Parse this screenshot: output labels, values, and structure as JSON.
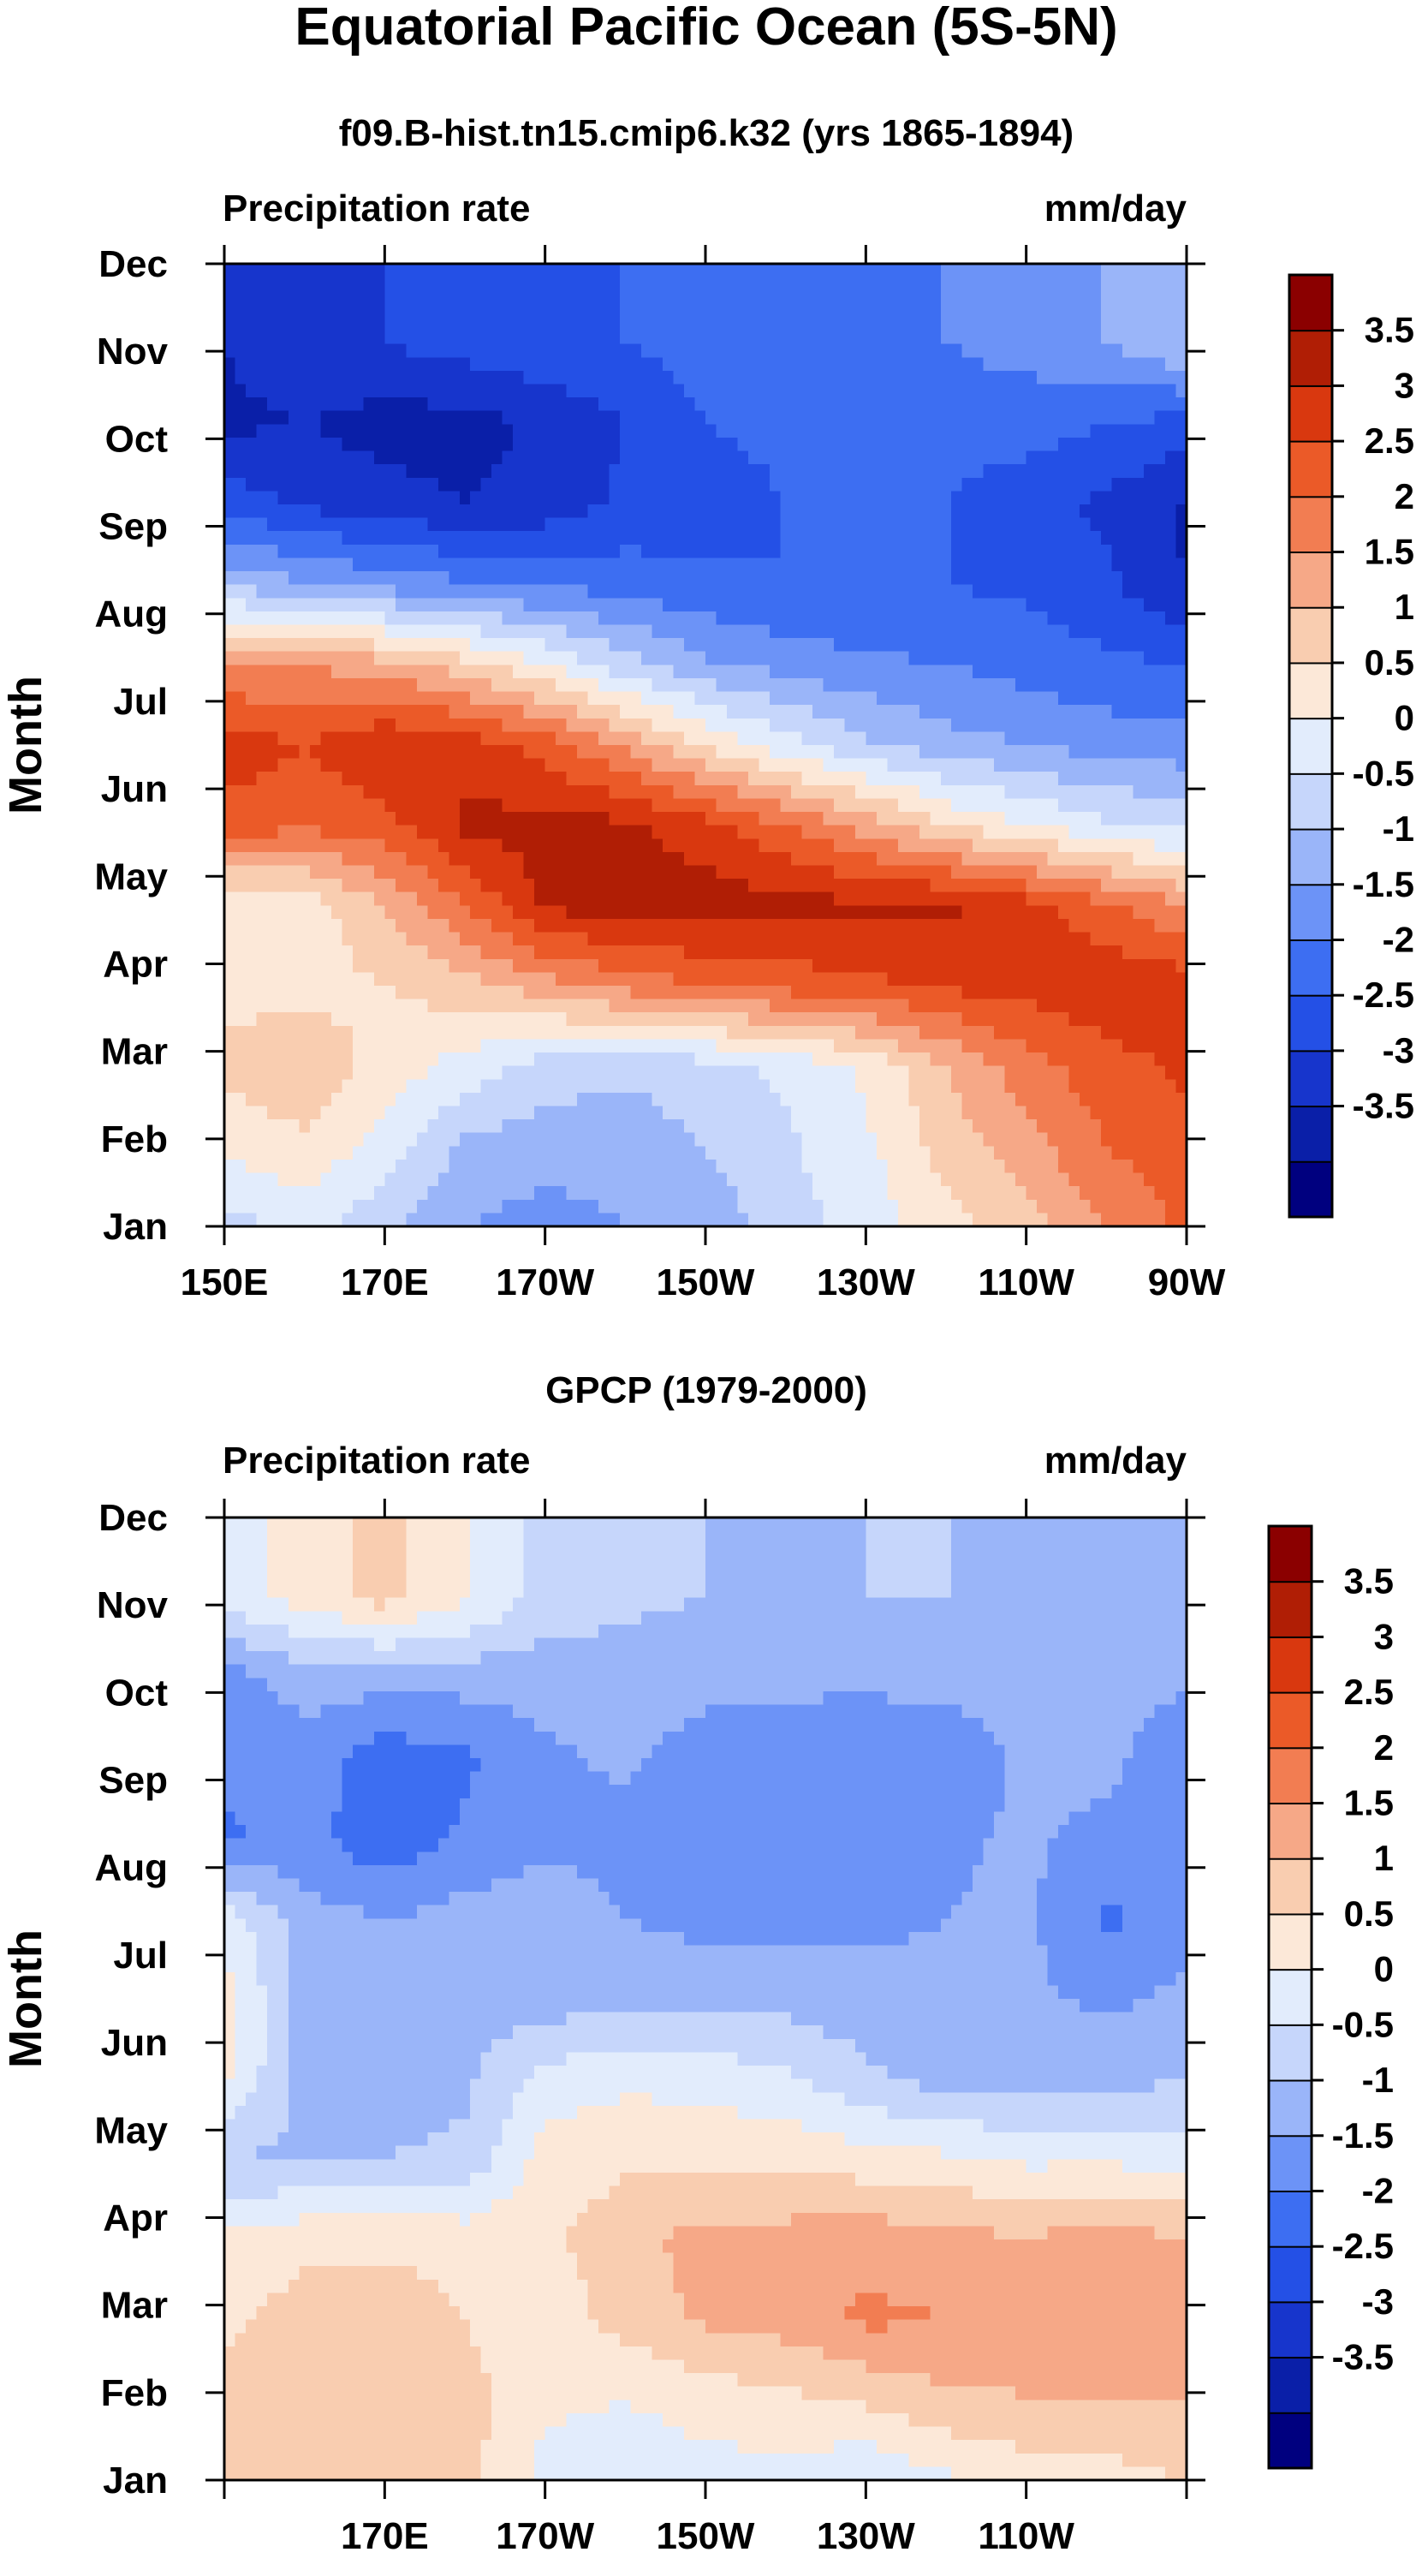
{
  "figure": {
    "title": "Equatorial Pacific Ocean (5S-5N)",
    "legend_ticks": [
      "3.5",
      "3",
      "2.5",
      "2",
      "1.5",
      "1",
      "0.5",
      "0",
      "-0.5",
      "-1",
      "-1.5",
      "-2",
      "-2.5",
      "-3",
      "-3.5"
    ],
    "colors": {
      "palette": [
        "#00007f",
        "#0a1fa8",
        "#1735cc",
        "#2450e6",
        "#3d6ef2",
        "#6c93f7",
        "#9ab5f9",
        "#c6d6fb",
        "#e2ecfc",
        "#fce8d8",
        "#f9cdb0",
        "#f6a887",
        "#f27d52",
        "#eb5a28",
        "#d9380f",
        "#b01e05",
        "#8b0000"
      ]
    }
  },
  "chart_data": [
    {
      "type": "heatmap",
      "subtitle": "f09.B-hist.tn15.cmip6.k32 (yrs 1865-1894)",
      "left_label": "Precipitation rate",
      "right_label": "mm/day",
      "ylabel": "Month",
      "xlabel": "",
      "x_tick_labels": [
        "150E",
        "170E",
        "170W",
        "150W",
        "130W",
        "110W",
        "90W"
      ],
      "y_tick_labels": [
        "Jan",
        "Feb",
        "Mar",
        "Apr",
        "May",
        "Jun",
        "Jul",
        "Aug",
        "Sep",
        "Oct",
        "Nov",
        "Dec"
      ],
      "x_longitude_east": [
        150,
        160,
        170,
        180,
        190,
        200,
        210,
        220,
        230,
        240,
        250,
        260,
        270
      ],
      "months": [
        "Jan",
        "Feb",
        "Mar",
        "Apr",
        "May",
        "Jun",
        "Jul",
        "Aug",
        "Sep",
        "Oct",
        "Nov",
        "Dec",
        "Dec"
      ],
      "contour_levels": [
        -3.5,
        -3,
        -2.5,
        -2,
        -1.5,
        -1,
        -0.5,
        0,
        0.5,
        1,
        1.5,
        2,
        2.5,
        3,
        3.5
      ],
      "values_mm_day": [
        [
          -0.2,
          0.2,
          -0.4,
          -1.0,
          -1.2,
          -1.0,
          -0.8,
          -0.2,
          0.2,
          0.8,
          1.3,
          2.0,
          2.6
        ],
        [
          0.6,
          0.9,
          0.3,
          -0.6,
          -0.8,
          -0.8,
          -0.5,
          -0.1,
          0.4,
          1.2,
          1.8,
          2.5,
          2.8
        ],
        [
          1.2,
          1.4,
          0.8,
          0.3,
          -0.2,
          -0.4,
          -0.2,
          0.1,
          0.6,
          1.5,
          2.3,
          2.8,
          3.1
        ],
        [
          0.8,
          0.8,
          1.0,
          1.3,
          1.8,
          2.2,
          2.5,
          2.7,
          2.9,
          3.1,
          3.2,
          3.4,
          3.3
        ],
        [
          0.5,
          0.7,
          1.5,
          2.5,
          3.6,
          3.8,
          3.8,
          3.7,
          3.6,
          3.6,
          3.2,
          2.6,
          2.0
        ],
        [
          2.8,
          2.6,
          2.8,
          3.6,
          3.7,
          3.6,
          3.2,
          2.5,
          1.8,
          1.0,
          0.5,
          0.1,
          -0.2
        ],
        [
          3.3,
          3.0,
          3.5,
          3.3,
          2.8,
          1.9,
          0.9,
          0.2,
          -0.4,
          -0.8,
          -1.0,
          -1.2,
          -1.3
        ],
        [
          2.0,
          2.0,
          1.7,
          1.2,
          0.5,
          -0.3,
          -0.9,
          -1.2,
          -1.4,
          -1.5,
          -1.7,
          -1.9,
          -2.0
        ],
        [
          -0.6,
          -0.9,
          -1.2,
          -1.4,
          -1.6,
          -1.7,
          -1.9,
          -2.0,
          -2.0,
          -2.0,
          -2.1,
          -2.4,
          -3.0
        ],
        [
          -2.2,
          -2.6,
          -2.8,
          -3.0,
          -2.8,
          -2.4,
          -2.2,
          -2.0,
          -1.9,
          -2.0,
          -2.3,
          -2.6,
          -3.1
        ],
        [
          -3.1,
          -3.0,
          -3.2,
          -3.2,
          -2.9,
          -2.5,
          -2.0,
          -1.9,
          -1.9,
          -1.8,
          -1.8,
          -2.0,
          -2.2
        ],
        [
          -3.0,
          -2.7,
          -2.5,
          -2.3,
          -2.1,
          -2.0,
          -1.8,
          -1.7,
          -1.6,
          -1.5,
          -1.3,
          -1.0,
          -0.5
        ],
        [
          -3.0,
          -2.7,
          -2.5,
          -2.3,
          -2.1,
          -2.0,
          -1.8,
          -1.7,
          -1.6,
          -1.5,
          -1.3,
          -1.0,
          -0.5
        ]
      ]
    },
    {
      "type": "heatmap",
      "subtitle": "GPCP (1979-2000)",
      "left_label": "Precipitation rate",
      "right_label": "mm/day",
      "ylabel": "Month",
      "xlabel": "",
      "x_tick_labels": [
        "",
        "170E",
        "170W",
        "150W",
        "130W",
        "110W",
        ""
      ],
      "y_tick_labels": [
        "Jan",
        "Feb",
        "Mar",
        "Apr",
        "May",
        "Jun",
        "Jul",
        "Aug",
        "Sep",
        "Oct",
        "Nov",
        "Dec"
      ],
      "x_longitude_east": [
        150,
        160,
        170,
        180,
        190,
        200,
        210,
        220,
        230,
        240,
        250,
        260,
        270
      ],
      "months": [
        "Jan",
        "Feb",
        "Mar",
        "Apr",
        "May",
        "Jun",
        "Jul",
        "Aug",
        "Sep",
        "Oct",
        "Nov",
        "Dec",
        "Dec"
      ],
      "contour_levels": [
        -3.5,
        -3,
        -2.5,
        -2,
        -1.5,
        -1,
        -0.5,
        0,
        0.5,
        1,
        1.5,
        2,
        2.5,
        3,
        3.5
      ],
      "values_mm_day": [
        [
          1.0,
          1.0,
          1.4,
          1.2,
          0.3,
          0.2,
          0.3,
          0.3,
          0.0,
          0.4,
          0.7,
          0.8,
          1.0
        ],
        [
          1.1,
          1.3,
          1.4,
          1.2,
          0.6,
          0.5,
          0.7,
          0.9,
          1.1,
          1.4,
          1.5,
          1.5,
          1.5
        ],
        [
          0.9,
          1.2,
          1.3,
          1.0,
          0.7,
          1.2,
          1.6,
          1.7,
          2.1,
          2.0,
          1.6,
          2.0,
          1.8
        ],
        [
          0.6,
          0.9,
          0.9,
          0.8,
          0.9,
          1.3,
          1.7,
          1.7,
          1.8,
          1.7,
          1.5,
          1.8,
          1.5
        ],
        [
          -0.5,
          -0.6,
          -0.5,
          -0.4,
          0.7,
          0.9,
          0.9,
          0.9,
          0.7,
          0.6,
          0.4,
          0.4,
          0.3
        ],
        [
          0.6,
          -0.7,
          -0.7,
          -0.6,
          0.2,
          0.4,
          0.3,
          0.1,
          -0.4,
          -0.7,
          -0.7,
          -0.7,
          -0.5
        ],
        [
          0.8,
          -0.8,
          -0.8,
          -0.8,
          -0.8,
          -0.6,
          -0.6,
          -0.7,
          -0.8,
          -0.9,
          -0.9,
          -1.1,
          -0.9
        ],
        [
          0.3,
          -0.8,
          -1.0,
          -0.8,
          -0.7,
          -1.0,
          -1.2,
          -1.2,
          -1.1,
          -1.0,
          -0.9,
          -1.6,
          -1.2
        ],
        [
          -1.6,
          -1.3,
          -1.9,
          -1.4,
          -1.1,
          -1.2,
          -1.5,
          -1.5,
          -1.3,
          -1.1,
          -0.9,
          -1.2,
          -1.4
        ],
        [
          -1.4,
          -1.2,
          -1.8,
          -1.6,
          -1.1,
          -0.9,
          -1.3,
          -1.5,
          -1.4,
          -1.4,
          -0.9,
          -0.8,
          -1.5
        ],
        [
          -1.2,
          -0.8,
          -0.8,
          -0.8,
          -0.8,
          -0.7,
          -0.8,
          -0.8,
          -0.9,
          -0.8,
          -0.8,
          -0.8,
          -0.9
        ],
        [
          0.2,
          0.7,
          1.2,
          0.6,
          -0.2,
          -0.4,
          -0.5,
          -0.6,
          -0.5,
          -0.5,
          -0.6,
          -0.7,
          -0.7
        ],
        [
          0.2,
          0.7,
          1.2,
          0.6,
          -0.2,
          -0.4,
          -0.5,
          -0.6,
          -0.5,
          -0.5,
          -0.6,
          -0.7,
          -0.7
        ]
      ]
    }
  ]
}
